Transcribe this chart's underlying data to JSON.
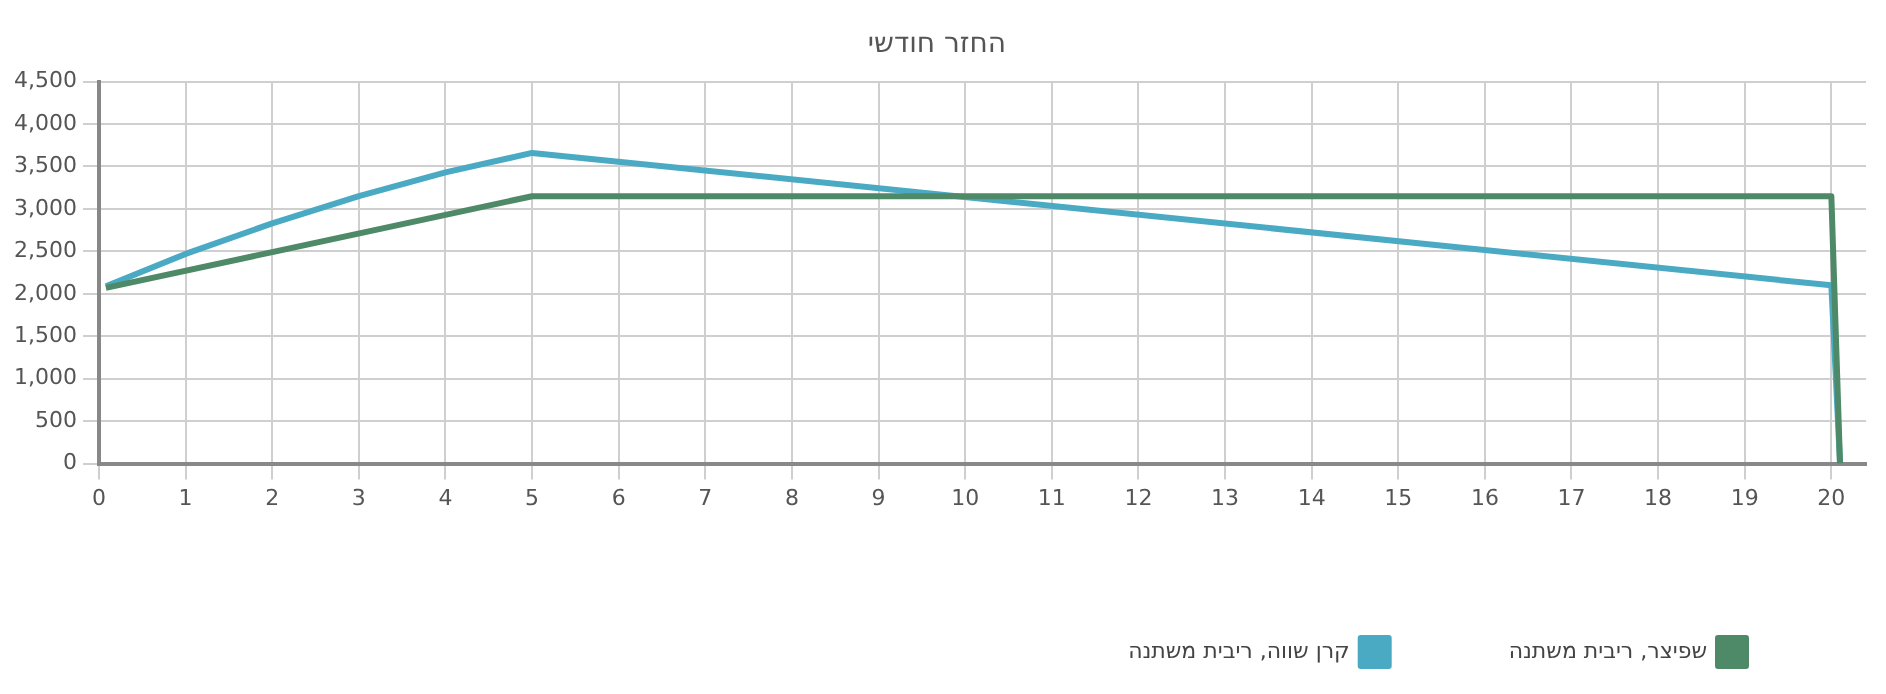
{
  "chart_data": {
    "type": "line",
    "title": "החזר חודשי",
    "series": [
      {
        "name": "שפיצר, ריבית משתנה",
        "color": "#4e8a67",
        "x": [
          0.08,
          5,
          20,
          20.1
        ],
        "values": [
          2070,
          3150,
          3150,
          0
        ]
      },
      {
        "name": "קרן שווה, ריבית משתנה",
        "color": "#4aaac4",
        "x": [
          0.08,
          1,
          2,
          3,
          4,
          5,
          20,
          20.1
        ],
        "values": [
          2090,
          2470,
          2830,
          3150,
          3430,
          3660,
          2100,
          0
        ]
      }
    ],
    "xlim": [
      0,
      20.4
    ],
    "xticks": [
      0,
      1,
      2,
      3,
      4,
      5,
      6,
      7,
      8,
      9,
      10,
      11,
      12,
      13,
      14,
      15,
      16,
      17,
      18,
      19,
      20
    ],
    "ylim": [
      0,
      4500
    ],
    "yticks": [
      0,
      500,
      {
        "value": 1000,
        "label": "1,000"
      },
      {
        "value": 1500,
        "label": "1,500"
      },
      {
        "value": 2000,
        "label": "2,000"
      },
      {
        "value": 2500,
        "label": "2,500"
      },
      {
        "value": 3000,
        "label": "3,000"
      },
      {
        "value": 3500,
        "label": "3,500"
      },
      {
        "value": 4000,
        "label": "4,000"
      },
      {
        "value": 4500,
        "label": "4,500"
      }
    ],
    "grid": true,
    "legend": "bottom right",
    "marker": "none",
    "line_style": "solid"
  }
}
